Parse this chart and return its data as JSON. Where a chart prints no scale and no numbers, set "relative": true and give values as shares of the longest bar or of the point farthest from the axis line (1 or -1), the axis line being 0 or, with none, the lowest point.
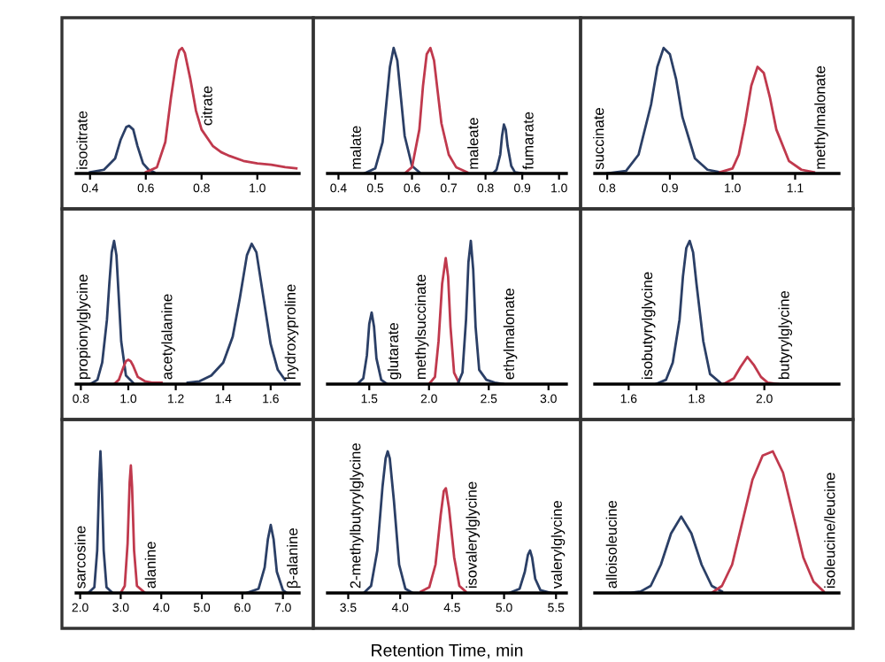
{
  "chart_data": [
    {
      "type": "line",
      "relative": true,
      "xlim": [
        0.35,
        1.15
      ],
      "xticks": [
        0.4,
        0.6,
        0.8,
        {
          "value": 1,
          "label": "1.0"
        }
      ],
      "series": [
        {
          "name": "isocitrate",
          "color": "#2b3f66",
          "x": [
            0.4,
            0.45,
            0.49,
            0.51,
            0.53,
            0.54,
            0.555,
            0.57,
            0.59,
            0.61,
            0.63
          ],
          "values": [
            0.01,
            0.03,
            0.12,
            0.27,
            0.37,
            0.38,
            0.35,
            0.22,
            0.08,
            0.03,
            0.01
          ]
        },
        {
          "name": "citrate",
          "color": "#c0394d",
          "x": [
            0.6,
            0.64,
            0.67,
            0.69,
            0.71,
            0.72,
            0.73,
            0.74,
            0.76,
            0.78,
            0.8,
            0.84,
            0.87,
            0.9,
            0.95,
            1.0,
            1.05,
            1.1,
            1.14
          ],
          "values": [
            0.01,
            0.05,
            0.25,
            0.6,
            0.9,
            0.98,
            1.0,
            0.96,
            0.75,
            0.5,
            0.35,
            0.22,
            0.17,
            0.14,
            0.1,
            0.08,
            0.07,
            0.05,
            0.04
          ]
        }
      ]
    },
    {
      "type": "line",
      "relative": true,
      "xlim": [
        0.37,
        1.02
      ],
      "xticks": [
        0.4,
        0.5,
        0.6,
        0.7,
        0.8,
        0.9,
        {
          "value": 1,
          "label": "1.0"
        }
      ],
      "series": [
        {
          "name": "malate",
          "color": "#2b3f66",
          "x": [
            0.47,
            0.5,
            0.52,
            0.53,
            0.54,
            0.55,
            0.56,
            0.57,
            0.58,
            0.6,
            0.62
          ],
          "values": [
            0,
            0.04,
            0.25,
            0.55,
            0.85,
            1.0,
            0.9,
            0.6,
            0.3,
            0.06,
            0.01
          ]
        },
        {
          "name": "maleate",
          "color": "#c0394d",
          "x": [
            0.58,
            0.6,
            0.62,
            0.63,
            0.64,
            0.65,
            0.66,
            0.67,
            0.68,
            0.7,
            0.72,
            0.75
          ],
          "values": [
            0,
            0.05,
            0.35,
            0.7,
            0.95,
            1.0,
            0.9,
            0.65,
            0.4,
            0.15,
            0.05,
            0.01
          ]
        },
        {
          "name": "fumarate",
          "color": "#2b3f66",
          "x": [
            0.82,
            0.83,
            0.84,
            0.845,
            0.85,
            0.855,
            0.86,
            0.87,
            0.88,
            0.9
          ],
          "values": [
            0,
            0.03,
            0.15,
            0.3,
            0.39,
            0.35,
            0.22,
            0.06,
            0.01,
            0
          ]
        }
      ]
    },
    {
      "type": "line",
      "relative": true,
      "xlim": [
        0.78,
        1.17
      ],
      "xticks": [
        0.8,
        0.9,
        {
          "value": 1,
          "label": "1.0"
        },
        1.1
      ],
      "series": [
        {
          "name": "succinate",
          "color": "#2b3f66",
          "x": [
            0.8,
            0.83,
            0.85,
            0.87,
            0.88,
            0.89,
            0.9,
            0.91,
            0.92,
            0.94,
            0.96,
            0.98
          ],
          "values": [
            0,
            0.02,
            0.15,
            0.55,
            0.85,
            1.0,
            0.95,
            0.75,
            0.45,
            0.12,
            0.03,
            0.01
          ]
        },
        {
          "name": "methylmalonate",
          "color": "#c0394d",
          "x": [
            0.98,
            1.0,
            1.01,
            1.02,
            1.03,
            1.04,
            1.05,
            1.06,
            1.07,
            1.09,
            1.11,
            1.13
          ],
          "values": [
            0.01,
            0.04,
            0.15,
            0.4,
            0.7,
            0.85,
            0.8,
            0.6,
            0.35,
            0.1,
            0.03,
            0.01
          ]
        }
      ]
    },
    {
      "type": "line",
      "relative": true,
      "xlim": [
        0.78,
        1.72
      ],
      "xticks": [
        0.8,
        {
          "value": 1,
          "label": "1.0"
        },
        1.2,
        1.4,
        1.6
      ],
      "series": [
        {
          "name": "propionylglycine",
          "color": "#2b3f66",
          "x": [
            0.84,
            0.87,
            0.89,
            0.91,
            0.92,
            0.93,
            0.94,
            0.95,
            0.96,
            0.97,
            0.99,
            1.02
          ],
          "values": [
            0,
            0.03,
            0.15,
            0.45,
            0.7,
            0.92,
            1.0,
            0.9,
            0.6,
            0.3,
            0.06,
            0.01
          ]
        },
        {
          "name": "acetylalanine",
          "color": "#c0394d",
          "x": [
            0.94,
            0.96,
            0.98,
            0.99,
            1.0,
            1.01,
            1.02,
            1.04,
            1.07,
            1.1,
            1.14
          ],
          "values": [
            0,
            0.03,
            0.12,
            0.16,
            0.17,
            0.16,
            0.13,
            0.05,
            0.02,
            0.01,
            0.01
          ]
        },
        {
          "name": "hydroxyproline",
          "color": "#2b3f66",
          "x": [
            1.25,
            1.3,
            1.35,
            1.4,
            1.44,
            1.47,
            1.5,
            1.52,
            1.54,
            1.57,
            1.6,
            1.63,
            1.66
          ],
          "values": [
            0.01,
            0.02,
            0.06,
            0.15,
            0.33,
            0.6,
            0.9,
            0.98,
            0.92,
            0.6,
            0.28,
            0.1,
            0.03
          ]
        }
      ]
    },
    {
      "type": "line",
      "relative": true,
      "xlim": [
        1.15,
        3.15
      ],
      "xticks": [
        1.5,
        {
          "value": 2,
          "label": "2.0"
        },
        2.5,
        {
          "value": 3,
          "label": "3.0"
        }
      ],
      "series": [
        {
          "name": "glutarate",
          "color": "#2b3f66",
          "x": [
            1.4,
            1.45,
            1.48,
            1.5,
            1.52,
            1.54,
            1.56,
            1.6,
            1.65
          ],
          "values": [
            0,
            0.04,
            0.2,
            0.42,
            0.5,
            0.4,
            0.18,
            0.03,
            0
          ]
        },
        {
          "name": "methylsuccinate",
          "color": "#c0394d",
          "x": [
            2.0,
            2.05,
            2.08,
            2.11,
            2.14,
            2.16,
            2.18,
            2.21,
            2.25
          ],
          "values": [
            0,
            0.05,
            0.3,
            0.7,
            0.88,
            0.75,
            0.4,
            0.08,
            0.01
          ]
        },
        {
          "name": "ethylmalonate",
          "color": "#2b3f66",
          "x": [
            2.24,
            2.28,
            2.31,
            2.33,
            2.35,
            2.37,
            2.39,
            2.42,
            2.48,
            2.55,
            2.62
          ],
          "values": [
            0,
            0.08,
            0.45,
            0.85,
            1.0,
            0.8,
            0.4,
            0.1,
            0.03,
            0.01,
            0
          ]
        }
      ]
    },
    {
      "type": "line",
      "relative": true,
      "xlim": [
        1.5,
        2.22
      ],
      "xticks": [
        1.6,
        1.8,
        {
          "value": 2,
          "label": "2.0"
        }
      ],
      "series": [
        {
          "name": "isobutyrylglycine",
          "color": "#2b3f66",
          "x": [
            1.68,
            1.71,
            1.73,
            1.75,
            1.76,
            1.77,
            1.78,
            1.79,
            1.8,
            1.82,
            1.84,
            1.87
          ],
          "values": [
            0,
            0.03,
            0.15,
            0.45,
            0.75,
            0.95,
            1.0,
            0.92,
            0.7,
            0.3,
            0.07,
            0.01
          ]
        },
        {
          "name": "butyrylglycine",
          "color": "#c0394d",
          "x": [
            1.88,
            1.91,
            1.93,
            1.95,
            1.97,
            1.99,
            2.01,
            2.04
          ],
          "values": [
            0,
            0.04,
            0.12,
            0.19,
            0.13,
            0.05,
            0.01,
            0
          ]
        }
      ]
    },
    {
      "type": "line",
      "relative": true,
      "xlim": [
        1.9,
        7.4
      ],
      "xticks": [
        {
          "value": 2,
          "label": "2.0"
        },
        {
          "value": 3,
          "label": "3.0"
        },
        {
          "value": 4,
          "label": "4.0"
        },
        {
          "value": 5,
          "label": "5.0"
        },
        {
          "value": 6,
          "label": "6.0"
        },
        {
          "value": 7,
          "label": "7.0"
        }
      ],
      "series": [
        {
          "name": "sarcosine",
          "color": "#2b3f66",
          "x": [
            2.2,
            2.35,
            2.42,
            2.47,
            2.5,
            2.53,
            2.58,
            2.65,
            2.8
          ],
          "values": [
            0,
            0.04,
            0.3,
            0.8,
            1.0,
            0.8,
            0.3,
            0.04,
            0
          ]
        },
        {
          "name": "alanine",
          "color": "#c0394d",
          "x": [
            3.0,
            3.1,
            3.17,
            3.22,
            3.25,
            3.28,
            3.33,
            3.4,
            3.6
          ],
          "values": [
            0,
            0.05,
            0.35,
            0.78,
            0.9,
            0.75,
            0.3,
            0.05,
            0
          ]
        },
        {
          "name": "β-alanine",
          "color": "#2b3f66",
          "x": [
            6.1,
            6.4,
            6.55,
            6.63,
            6.7,
            6.77,
            6.85,
            7.0,
            7.1
          ],
          "values": [
            0,
            0.03,
            0.18,
            0.38,
            0.48,
            0.38,
            0.15,
            0.02,
            0
          ]
        }
      ]
    },
    {
      "type": "line",
      "relative": true,
      "xlabel": "Retention Time, min",
      "xlim": [
        3.3,
        5.6
      ],
      "xticks": [
        3.5,
        {
          "value": 4,
          "label": "4.0"
        },
        4.5,
        {
          "value": 5,
          "label": "5.0"
        },
        5.5
      ],
      "series": [
        {
          "name": "2-methylbutyrylglycine",
          "color": "#2b3f66",
          "x": [
            3.65,
            3.72,
            3.78,
            3.83,
            3.86,
            3.88,
            3.9,
            3.94,
            3.99,
            4.05,
            4.12
          ],
          "values": [
            0,
            0.05,
            0.3,
            0.75,
            0.95,
            1.0,
            0.95,
            0.65,
            0.2,
            0.03,
            0
          ]
        },
        {
          "name": "isovalerylglycine",
          "color": "#c0394d",
          "x": [
            4.2,
            4.28,
            4.34,
            4.39,
            4.42,
            4.44,
            4.47,
            4.52,
            4.57,
            4.63
          ],
          "values": [
            0.01,
            0.04,
            0.2,
            0.55,
            0.72,
            0.74,
            0.6,
            0.25,
            0.05,
            0.01
          ]
        },
        {
          "name": "valerylglycine",
          "color": "#2b3f66",
          "x": [
            5.05,
            5.15,
            5.2,
            5.23,
            5.25,
            5.27,
            5.3,
            5.35,
            5.45
          ],
          "values": [
            0,
            0.03,
            0.15,
            0.27,
            0.3,
            0.25,
            0.1,
            0.02,
            0
          ]
        }
      ]
    },
    {
      "type": "line",
      "relative": true,
      "tick_labels": false,
      "categories": [
        null,
        null,
        null,
        null,
        null,
        null,
        null,
        null,
        null,
        null,
        null,
        null,
        null,
        null,
        null,
        null,
        null,
        null,
        null,
        null,
        null,
        null,
        null,
        null
      ],
      "series": [
        {
          "name": "alloisoleucine",
          "color": "#2b3f66",
          "values": [
            null,
            null,
            0,
            0,
            0.01,
            0.05,
            0.2,
            0.42,
            0.54,
            0.42,
            0.2,
            0.05,
            0.01,
            null,
            null,
            null,
            null,
            null,
            null,
            null,
            null,
            null,
            null,
            null
          ]
        },
        {
          "name": "isoleucine/leucine",
          "color": "#c0394d",
          "values": [
            null,
            null,
            null,
            null,
            null,
            null,
            null,
            null,
            null,
            null,
            null,
            0,
            0.05,
            0.2,
            0.5,
            0.8,
            0.97,
            1.0,
            0.85,
            0.55,
            0.25,
            0.08,
            0.01,
            null
          ]
        }
      ]
    }
  ]
}
